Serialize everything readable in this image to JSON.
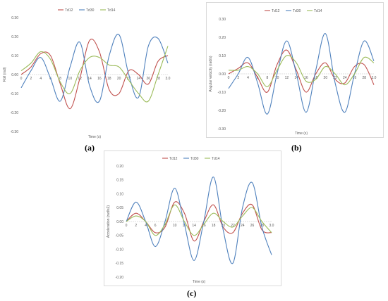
{
  "chart_data": [
    {
      "panel_label": "(a)",
      "type": "line",
      "xlabel": "Time (s)",
      "ylabel": "Roll (rad)",
      "xlim": [
        0,
        3.0
      ],
      "ylim": [
        -0.3,
        0.3
      ],
      "x_ticks": [
        "0",
        "2",
        "4",
        "6",
        "8",
        "10",
        "12",
        "14",
        "16",
        "18",
        "20",
        "22",
        "24",
        "26",
        "28",
        "3.0"
      ],
      "y_ticks": [
        "0.30",
        "0.20",
        "0.10",
        "0.00",
        "-0.10",
        "-0.20",
        "-0.30"
      ],
      "legend_position": "top-center",
      "grid": false,
      "x": [
        0,
        0.2,
        0.4,
        0.6,
        0.8,
        1.0,
        1.2,
        1.4,
        1.6,
        1.8,
        2.0,
        2.2,
        2.4,
        2.6,
        2.8,
        3.0
      ],
      "series": [
        {
          "name": "Td12",
          "color": "#c0504d",
          "values": [
            0.0,
            0.04,
            0.11,
            0.1,
            -0.05,
            -0.18,
            -0.02,
            0.18,
            0.12,
            -0.08,
            -0.1,
            0.02,
            0.0,
            -0.05,
            0.07,
            0.1
          ]
        },
        {
          "name": "Td30",
          "color": "#4f81bd",
          "values": [
            -0.07,
            0.02,
            0.09,
            -0.02,
            -0.14,
            0.04,
            0.17,
            -0.06,
            -0.14,
            0.1,
            0.21,
            0.0,
            -0.12,
            0.15,
            0.19,
            0.06
          ]
        },
        {
          "name": "Td14",
          "color": "#9bbb59",
          "values": [
            0.02,
            0.06,
            0.12,
            0.08,
            -0.04,
            -0.1,
            0.02,
            0.09,
            0.09,
            0.05,
            0.04,
            -0.03,
            -0.1,
            -0.14,
            0.0,
            0.15
          ]
        }
      ]
    },
    {
      "panel_label": "(b)",
      "type": "line",
      "xlabel": "Time (s)",
      "ylabel": "Angular velocity (rad/s)",
      "xlim": [
        0,
        3.0
      ],
      "ylim": [
        -0.3,
        0.3
      ],
      "x_ticks": [
        "0",
        "2",
        "4",
        "6",
        "8",
        "10",
        "12",
        "14",
        "16",
        "18",
        "20",
        "22",
        "24",
        "26",
        "28",
        "3.0"
      ],
      "y_ticks": [
        "0.30",
        "0.20",
        "0.10",
        "0.00",
        "-0.10",
        "-0.20",
        "-0.30"
      ],
      "legend_position": "top-center",
      "grid": false,
      "x": [
        0,
        0.2,
        0.4,
        0.6,
        0.8,
        1.0,
        1.2,
        1.4,
        1.6,
        1.8,
        2.0,
        2.2,
        2.4,
        2.6,
        2.8,
        3.0
      ],
      "series": [
        {
          "name": "Td12",
          "color": "#c0504d",
          "values": [
            0.0,
            0.03,
            0.06,
            -0.02,
            -0.1,
            0.05,
            0.13,
            0.02,
            -0.1,
            0.0,
            0.06,
            -0.03,
            -0.05,
            0.04,
            0.05,
            -0.06
          ]
        },
        {
          "name": "Td30",
          "color": "#4f81bd",
          "values": [
            -0.08,
            0.0,
            0.09,
            -0.05,
            -0.22,
            0.0,
            0.18,
            0.0,
            -0.21,
            0.02,
            0.22,
            -0.05,
            -0.21,
            0.0,
            0.18,
            0.07
          ]
        },
        {
          "name": "Td14",
          "color": "#9bbb59",
          "values": [
            0.02,
            0.02,
            0.04,
            0.0,
            -0.07,
            0.02,
            0.1,
            0.06,
            -0.04,
            -0.03,
            0.04,
            0.0,
            -0.06,
            0.0,
            0.09,
            0.06
          ]
        }
      ]
    },
    {
      "panel_label": "(c)",
      "type": "line",
      "xlabel": "Time (s)",
      "ylabel": "Acceleration (rad/s2)",
      "xlim": [
        0,
        3.0
      ],
      "ylim": [
        -0.2,
        0.2
      ],
      "x_ticks": [
        "0",
        "2",
        "4",
        "6",
        "8",
        "10",
        "12",
        "14",
        "16",
        "18",
        "20",
        "22",
        "24",
        "26",
        "28",
        "3.0"
      ],
      "y_ticks": [
        "0.20",
        "0.15",
        "0.10",
        "0.05",
        "0.00",
        "-0.05",
        "-0.10",
        "-0.15",
        "-0.20"
      ],
      "legend_position": "top-center",
      "grid": false,
      "x": [
        0,
        0.2,
        0.4,
        0.6,
        0.8,
        1.0,
        1.2,
        1.4,
        1.6,
        1.8,
        2.0,
        2.2,
        2.4,
        2.6,
        2.8,
        3.0
      ],
      "series": [
        {
          "name": "Td12",
          "color": "#c0504d",
          "values": [
            0.0,
            0.03,
            0.0,
            -0.04,
            -0.02,
            0.07,
            0.03,
            -0.07,
            0.0,
            0.06,
            -0.02,
            -0.04,
            0.03,
            0.06,
            -0.03,
            -0.04
          ]
        },
        {
          "name": "Td30",
          "color": "#4f81bd",
          "values": [
            0.0,
            0.07,
            0.0,
            -0.09,
            0.0,
            0.12,
            -0.01,
            -0.14,
            0.0,
            0.16,
            -0.03,
            -0.15,
            0.05,
            0.14,
            -0.02,
            -0.12
          ]
        },
        {
          "name": "Td14",
          "color": "#9bbb59",
          "values": [
            0.0,
            0.02,
            0.0,
            -0.05,
            -0.01,
            0.06,
            0.0,
            -0.05,
            -0.01,
            0.03,
            0.0,
            -0.02,
            0.02,
            0.05,
            0.0,
            -0.04
          ]
        }
      ]
    }
  ]
}
